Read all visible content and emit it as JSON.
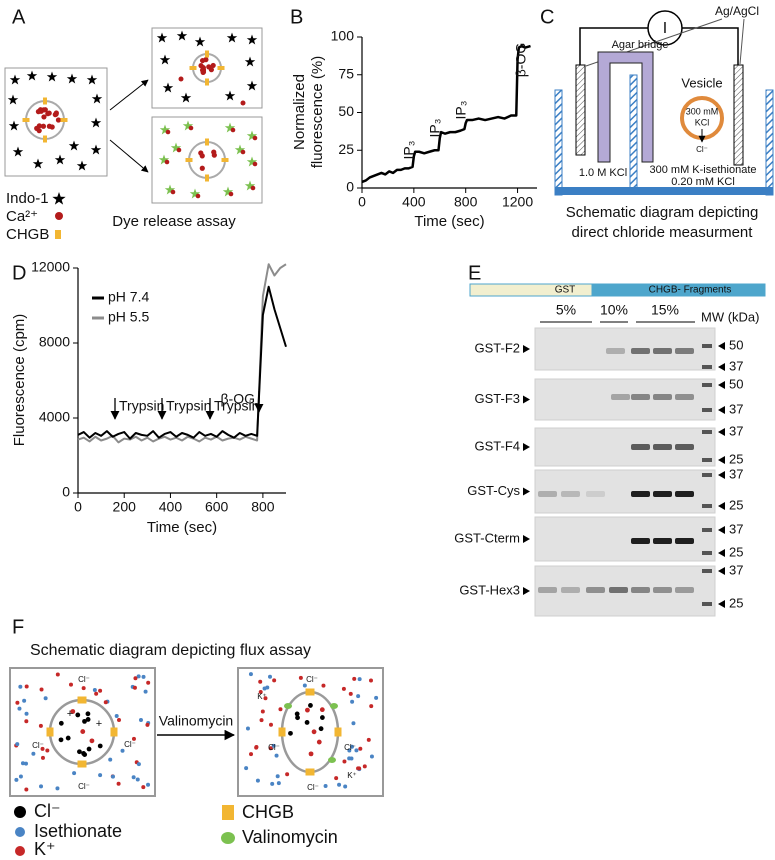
{
  "panel_labels": [
    "A",
    "B",
    "C",
    "D",
    "E",
    "F"
  ],
  "panel_a": {
    "legend": [
      "Indo-1",
      "Ca²⁺",
      "CHGB"
    ],
    "caption": "Dye release assay"
  },
  "chart_data": [
    {
      "type": "line",
      "xlabel": "Time (sec)",
      "ylabel": [
        "Normalized",
        "fluorescence (%)"
      ],
      "x": [
        0,
        30,
        60,
        90,
        120,
        150,
        180,
        210,
        240,
        270,
        300,
        330,
        360,
        390,
        400,
        410,
        440,
        480,
        520,
        560,
        590,
        600,
        610,
        640,
        680,
        720,
        760,
        790,
        800,
        810,
        850,
        900,
        950,
        1000,
        1050,
        1100,
        1150,
        1190,
        1200,
        1210,
        1230,
        1260,
        1300
      ],
      "series": [
        {
          "color": "#000000",
          "values": [
            4,
            5,
            7,
            8,
            9,
            10,
            9,
            11,
            10,
            12,
            12,
            13,
            13,
            14,
            21,
            24,
            24,
            23,
            24,
            25,
            25,
            33,
            37,
            36,
            37,
            37,
            38,
            39,
            43,
            45,
            45,
            46,
            45,
            46,
            47,
            46,
            48,
            48,
            85,
            93,
            94,
            93,
            94
          ]
        }
      ],
      "xlim": [
        0,
        1350
      ],
      "ylim": [
        0,
        100
      ],
      "xticks": [
        0,
        400,
        800,
        1200
      ],
      "yticks": [
        0,
        25,
        50,
        75,
        100
      ],
      "grid": false,
      "annotations": [
        "IP₃",
        "IP₃",
        "IP₃",
        "β-OG"
      ]
    },
    {
      "type": "line",
      "xlabel": "Time (sec)",
      "ylabel": "Fluorescence (cpm)",
      "x": [
        0,
        25,
        50,
        75,
        100,
        125,
        150,
        175,
        200,
        225,
        250,
        275,
        300,
        325,
        350,
        375,
        400,
        425,
        450,
        475,
        500,
        525,
        550,
        575,
        600,
        625,
        650,
        675,
        700,
        725,
        750,
        775,
        800,
        825,
        850,
        875,
        900
      ],
      "series": [
        {
          "name": "pH 7.4",
          "color": "#000000",
          "values": [
            3100,
            3250,
            2950,
            3200,
            3050,
            3300,
            3000,
            3150,
            3250,
            2900,
            3200,
            3100,
            3050,
            3300,
            2950,
            3150,
            3250,
            3000,
            3200,
            3100,
            2950,
            3250,
            3050,
            3150,
            3000,
            3300,
            3100,
            2950,
            3200,
            3050,
            3150,
            3050,
            9500,
            11000,
            9800,
            8800,
            7800
          ]
        },
        {
          "name": "pH 5.5",
          "color": "#8c8c8c",
          "values": [
            2850,
            2950,
            2750,
            3000,
            2800,
            2900,
            3050,
            2700,
            2900,
            2850,
            3000,
            2800,
            2950,
            2750,
            2900,
            3000,
            2850,
            2950,
            2800,
            3000,
            2900,
            2750,
            2950,
            2850,
            3000,
            2800,
            2900,
            2950,
            2850,
            3000,
            2900,
            2800,
            10500,
            12200,
            11600,
            12000,
            12200
          ]
        }
      ],
      "xlim": [
        0,
        900
      ],
      "ylim": [
        0,
        12000
      ],
      "xticks": [
        0,
        200,
        400,
        600,
        800
      ],
      "yticks": [
        0,
        4000,
        8000,
        12000
      ],
      "grid": false,
      "legend": "upper left",
      "annotations": [
        "Trypsin",
        "Trypsin",
        "Trypsin",
        "β-OG"
      ]
    }
  ],
  "panel_c": {
    "meter": "I",
    "electrode": "Ag/AgCl",
    "bridge": "Agar bridge",
    "vesicle": "Vesicle",
    "vesicle_content": [
      "300 mM",
      "KCl"
    ],
    "ion": "Cl⁻",
    "left_solution": "1.0 M KCl",
    "right_solution": [
      "300 mM K-isethionate",
      "0.20 mM KCl"
    ],
    "caption": [
      "Schematic diagram depicting",
      "direct chloride measurment"
    ]
  },
  "panel_e": {
    "header": [
      "GST",
      "CHGB- Fragments"
    ],
    "percentages": [
      "5%",
      "10%",
      "15%"
    ],
    "mw_label": "MW (kDa)",
    "rows": [
      {
        "label": "GST-F2",
        "markers": [
          "50",
          "37"
        ]
      },
      {
        "label": "GST-F3",
        "markers": [
          "50",
          "37"
        ]
      },
      {
        "label": "GST-F4",
        "markers": [
          "37",
          "25"
        ]
      },
      {
        "label": "GST-Cys",
        "markers": [
          "37",
          "25"
        ]
      },
      {
        "label": "GST-Cterm",
        "markers": [
          "37",
          "25"
        ]
      },
      {
        "label": "GST-Hex3",
        "markers": [
          "37",
          "25"
        ]
      }
    ]
  },
  "panel_f": {
    "title": "Schematic diagram depicting flux assay",
    "treatment": "Valinomycin",
    "ions": {
      "chloride": "Cl⁻",
      "potassium": "K⁺",
      "plus": "+"
    },
    "legend": [
      "Cl⁻",
      "Isethionate",
      "K⁺",
      "CHGB",
      "Valinomycin"
    ]
  }
}
